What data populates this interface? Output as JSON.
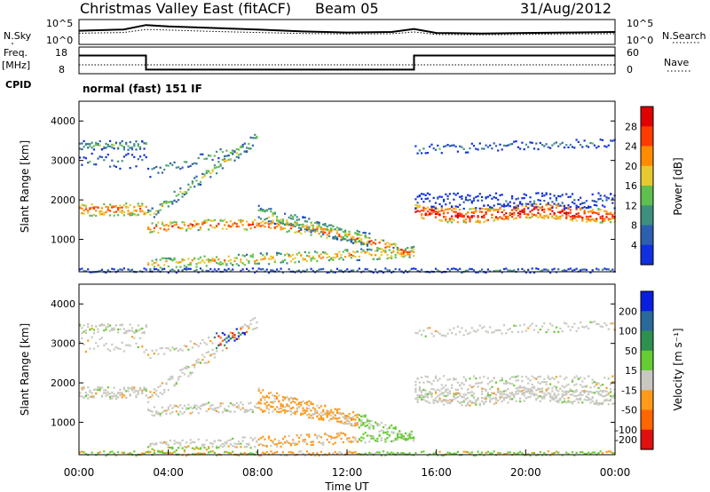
{
  "header": {
    "title": "Christmas Valley East (fitACF)",
    "beam": "Beam 05",
    "date": "31/Aug/2012",
    "cpid_label": "CPID",
    "cpid_value": "normal (fast) 151 IF"
  },
  "chart_data": [
    {
      "type": "line",
      "name": "noise",
      "left_label": "N.Sky",
      "right_label": "N.Search",
      "left_ticks": [
        "10^5",
        "10^0"
      ],
      "right_ticks": [
        "10^5",
        "10^0"
      ],
      "x": [
        "00:00",
        "02:00",
        "03:00",
        "04:00",
        "06:00",
        "08:00",
        "10:00",
        "12:00",
        "14:00",
        "15:00",
        "16:00",
        "18:00",
        "20:00",
        "22:00",
        "24:00"
      ],
      "series": [
        {
          "values": [
            0.55,
            0.6,
            0.78,
            0.72,
            0.66,
            0.6,
            0.52,
            0.48,
            0.5,
            0.62,
            0.46,
            0.44,
            0.46,
            0.48,
            0.5
          ]
        },
        {
          "values": [
            0.45,
            0.48,
            0.6,
            0.58,
            0.52,
            0.48,
            0.44,
            0.42,
            0.43,
            0.5,
            0.4,
            0.39,
            0.4,
            0.42,
            0.43
          ]
        }
      ]
    },
    {
      "type": "line",
      "name": "frequency",
      "left_label": "Freq. [MHz]",
      "right_label": "Nave",
      "left_ticks": [
        "18",
        "8"
      ],
      "right_ticks": [
        "60",
        "0"
      ],
      "x": [
        "00:00",
        "03:00",
        "03:00",
        "15:00",
        "15:00",
        "24:00"
      ],
      "series": [
        {
          "values": [
            15.5,
            15.5,
            10.2,
            10.2,
            15.5,
            15.5
          ]
        },
        {
          "values": [
            12.0,
            12.0,
            12.0,
            12.0,
            12.0,
            12.0
          ]
        }
      ]
    },
    {
      "type": "heatmap",
      "name": "power",
      "ylabel": "Slant Range [km]",
      "yticks": [
        1000,
        2000,
        3000,
        4000
      ],
      "ylim": [
        180,
        4500
      ],
      "xlim_hours": [
        0,
        24
      ],
      "colorbar_label": "Power [dB]",
      "colorbar_ticks": [
        4,
        8,
        12,
        16,
        20,
        24,
        28
      ],
      "colorbar_colors": [
        "#1030e0",
        "#2d5fb0",
        "#3f8f7f",
        "#5fbf4f",
        "#e6c830",
        "#ff8c00",
        "#ff3c00",
        "#e00000"
      ]
    },
    {
      "type": "heatmap",
      "name": "velocity",
      "ylabel": "Slant Range [km]",
      "yticks": [
        1000,
        2000,
        3000,
        4000
      ],
      "ylim": [
        180,
        4500
      ],
      "xlim_hours": [
        0,
        24
      ],
      "xlabel": "Time UT",
      "xticks": [
        "00:00",
        "04:00",
        "08:00",
        "12:00",
        "16:00",
        "20:00",
        "00:00"
      ],
      "colorbar_label": "Velocity [m s⁻¹]",
      "colorbar_ticks": [
        200,
        100,
        50,
        15,
        -15,
        -50,
        -100,
        -200
      ],
      "colorbar_colors": [
        "#0a1ee0",
        "#2a6a9a",
        "#2f8f4f",
        "#66cc33",
        "#c8c8c0",
        "#ff9a1a",
        "#ff6600",
        "#e01010"
      ]
    }
  ]
}
